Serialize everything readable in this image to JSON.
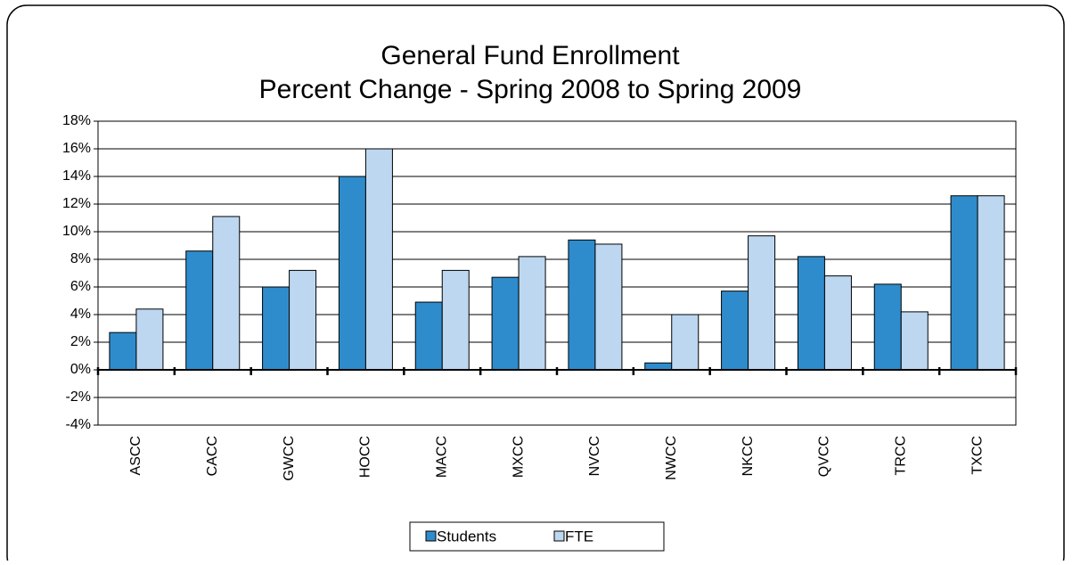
{
  "chart_data": {
    "type": "bar",
    "title": "General Fund Enrollment",
    "subtitle": "Percent Change - Spring 2008 to Spring 2009",
    "categories": [
      "ASCC",
      "CACC",
      "GWCC",
      "HOCC",
      "MACC",
      "MXCC",
      "NVCC",
      "NWCC",
      "NKCC",
      "QVCC",
      "TRCC",
      "TXCC"
    ],
    "series": [
      {
        "name": "Students",
        "color": "#2f8ccc",
        "values": [
          2.7,
          8.6,
          6.0,
          14.0,
          4.9,
          6.7,
          9.4,
          0.5,
          5.7,
          8.2,
          6.2,
          12.6
        ]
      },
      {
        "name": "FTE",
        "color": "#bdd7f1",
        "values": [
          4.4,
          11.1,
          7.2,
          16.0,
          7.2,
          8.2,
          9.1,
          4.0,
          9.7,
          6.8,
          4.2,
          12.6
        ]
      }
    ],
    "ylim": [
      -4,
      18
    ],
    "yticks": [
      {
        "value": -4,
        "label": "-4%"
      },
      {
        "value": -2,
        "label": "-2%"
      },
      {
        "value": 0,
        "label": "0%"
      },
      {
        "value": 2,
        "label": "2%"
      },
      {
        "value": 4,
        "label": "4%"
      },
      {
        "value": 6,
        "label": "6%"
      },
      {
        "value": 8,
        "label": "8%"
      },
      {
        "value": 10,
        "label": "10%"
      },
      {
        "value": 12,
        "label": "12%"
      },
      {
        "value": 14,
        "label": "14%"
      },
      {
        "value": 16,
        "label": "16%"
      },
      {
        "value": 18,
        "label": "18%"
      }
    ],
    "grid": true,
    "legend": "bottom"
  }
}
